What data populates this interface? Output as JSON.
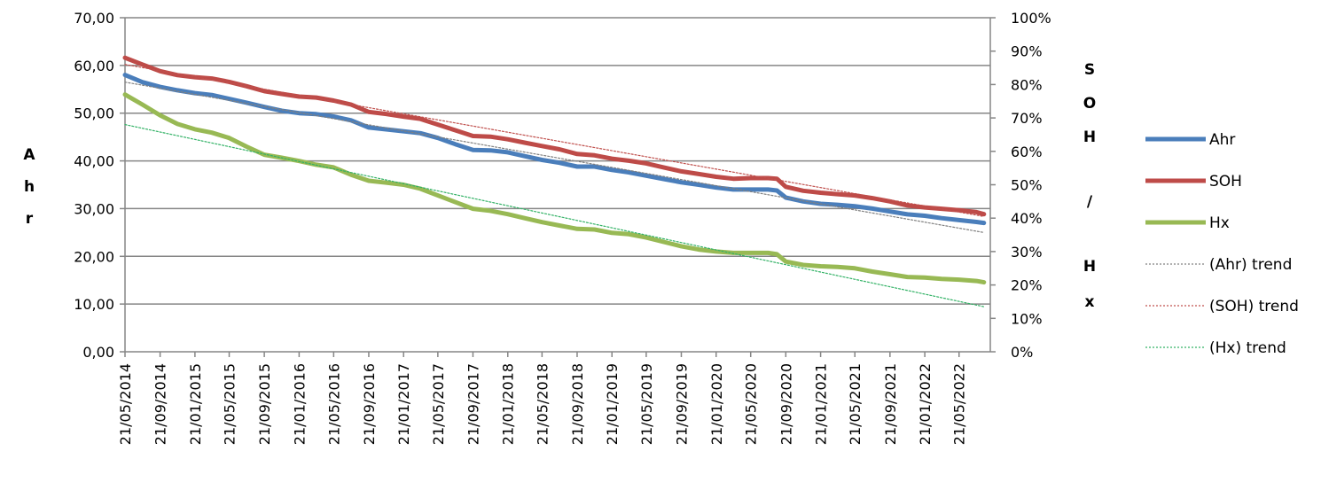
{
  "chart_data": {
    "type": "line",
    "title": "",
    "xlabel": "",
    "ylabel_left_letters": [
      "A",
      "h",
      "r"
    ],
    "ylabel_right_letters": [
      "S",
      "O",
      "H",
      "/",
      "H",
      "x"
    ],
    "x_ticks": [
      "21/05/2014",
      "21/09/2014",
      "21/01/2015",
      "21/05/2015",
      "21/09/2015",
      "21/01/2016",
      "21/05/2016",
      "21/09/2016",
      "21/01/2017",
      "21/05/2017",
      "21/09/2017",
      "21/01/2018",
      "21/05/2018",
      "21/09/2018",
      "21/01/2019",
      "21/05/2019",
      "21/09/2019",
      "21/01/2020",
      "21/05/2020",
      "21/09/2020",
      "21/01/2021",
      "21/05/2021",
      "21/09/2021",
      "21/01/2022",
      "21/05/2022"
    ],
    "y_left": {
      "range": [
        0,
        70
      ],
      "ticks": [
        "0,00",
        "10,00",
        "20,00",
        "30,00",
        "40,00",
        "50,00",
        "60,00",
        "70,00"
      ]
    },
    "y_right": {
      "range": [
        0,
        100
      ],
      "ticks": [
        "0%",
        "10%",
        "20%",
        "30%",
        "40%",
        "50%",
        "60%",
        "70%",
        "80%",
        "90%",
        "100%"
      ]
    },
    "grid": "horizontal",
    "legend_position": "right",
    "series": [
      {
        "name": "Ahr",
        "axis": "left",
        "color": "#4a7ebb",
        "style": "solid",
        "points": [
          [
            "21/05/2014",
            58.0
          ],
          [
            "21/07/2014",
            56.5
          ],
          [
            "21/09/2014",
            55.5
          ],
          [
            "21/11/2014",
            54.8
          ],
          [
            "21/01/2015",
            54.2
          ],
          [
            "21/03/2015",
            53.8
          ],
          [
            "21/05/2015",
            53.0
          ],
          [
            "21/07/2015",
            52.2
          ],
          [
            "21/09/2015",
            51.3
          ],
          [
            "21/11/2015",
            50.5
          ],
          [
            "21/01/2016",
            50.0
          ],
          [
            "21/03/2016",
            49.8
          ],
          [
            "21/05/2016",
            49.3
          ],
          [
            "21/07/2016",
            48.5
          ],
          [
            "21/09/2016",
            47.0
          ],
          [
            "21/11/2016",
            46.6
          ],
          [
            "21/01/2017",
            46.2
          ],
          [
            "21/03/2017",
            45.8
          ],
          [
            "21/05/2017",
            44.8
          ],
          [
            "21/07/2017",
            43.5
          ],
          [
            "21/09/2017",
            42.3
          ],
          [
            "21/11/2017",
            42.2
          ],
          [
            "21/01/2018",
            41.8
          ],
          [
            "21/03/2018",
            41.0
          ],
          [
            "21/05/2018",
            40.2
          ],
          [
            "21/07/2018",
            39.6
          ],
          [
            "21/09/2018",
            38.8
          ],
          [
            "21/11/2018",
            38.8
          ],
          [
            "21/01/2019",
            38.1
          ],
          [
            "21/03/2019",
            37.6
          ],
          [
            "21/05/2019",
            36.9
          ],
          [
            "21/07/2019",
            36.2
          ],
          [
            "21/09/2019",
            35.5
          ],
          [
            "21/11/2019",
            35.0
          ],
          [
            "21/01/2020",
            34.4
          ],
          [
            "21/03/2020",
            34.0
          ],
          [
            "21/05/2020",
            34.0
          ],
          [
            "21/07/2020",
            34.0
          ],
          [
            "21/08/2020",
            33.8
          ],
          [
            "21/09/2020",
            32.3
          ],
          [
            "21/11/2020",
            31.5
          ],
          [
            "21/01/2021",
            31.0
          ],
          [
            "21/03/2021",
            30.8
          ],
          [
            "21/05/2021",
            30.5
          ],
          [
            "21/07/2021",
            30.0
          ],
          [
            "21/09/2021",
            29.4
          ],
          [
            "21/11/2021",
            28.8
          ],
          [
            "21/01/2022",
            28.5
          ],
          [
            "21/03/2022",
            28.0
          ],
          [
            "21/05/2022",
            27.6
          ],
          [
            "21/07/2022",
            27.2
          ],
          [
            "16/08/2022",
            27.0
          ]
        ]
      },
      {
        "name": "SOH",
        "axis": "right",
        "color": "#be4b48",
        "style": "solid",
        "points": [
          [
            "21/05/2014",
            88.0
          ],
          [
            "21/07/2014",
            86.0
          ],
          [
            "21/09/2014",
            84.0
          ],
          [
            "21/11/2014",
            82.8
          ],
          [
            "21/01/2015",
            82.2
          ],
          [
            "21/03/2015",
            81.8
          ],
          [
            "21/05/2015",
            80.8
          ],
          [
            "21/07/2015",
            79.5
          ],
          [
            "21/09/2015",
            78.0
          ],
          [
            "21/11/2015",
            77.2
          ],
          [
            "21/01/2016",
            76.4
          ],
          [
            "21/03/2016",
            76.1
          ],
          [
            "21/05/2016",
            75.2
          ],
          [
            "21/07/2016",
            74.0
          ],
          [
            "21/09/2016",
            71.8
          ],
          [
            "21/11/2016",
            71.2
          ],
          [
            "21/01/2017",
            70.4
          ],
          [
            "21/03/2017",
            69.7
          ],
          [
            "21/05/2017",
            68.0
          ],
          [
            "21/07/2017",
            66.3
          ],
          [
            "21/09/2017",
            64.6
          ],
          [
            "21/11/2017",
            64.4
          ],
          [
            "21/01/2018",
            63.6
          ],
          [
            "21/03/2018",
            62.6
          ],
          [
            "21/05/2018",
            61.6
          ],
          [
            "21/07/2018",
            60.6
          ],
          [
            "21/09/2018",
            59.2
          ],
          [
            "21/11/2018",
            58.8
          ],
          [
            "21/01/2019",
            57.8
          ],
          [
            "21/03/2019",
            57.2
          ],
          [
            "21/05/2019",
            56.4
          ],
          [
            "21/07/2019",
            55.2
          ],
          [
            "21/09/2019",
            54.0
          ],
          [
            "21/11/2019",
            53.2
          ],
          [
            "21/01/2020",
            52.4
          ],
          [
            "21/03/2020",
            51.8
          ],
          [
            "21/05/2020",
            52.0
          ],
          [
            "21/07/2020",
            52.0
          ],
          [
            "21/08/2020",
            51.8
          ],
          [
            "21/09/2020",
            49.4
          ],
          [
            "21/11/2020",
            48.2
          ],
          [
            "21/01/2021",
            47.6
          ],
          [
            "21/03/2021",
            47.2
          ],
          [
            "21/05/2021",
            46.8
          ],
          [
            "21/07/2021",
            46.0
          ],
          [
            "21/09/2021",
            45.0
          ],
          [
            "21/11/2021",
            43.8
          ],
          [
            "21/01/2022",
            43.2
          ],
          [
            "21/03/2022",
            42.8
          ],
          [
            "21/05/2022",
            42.4
          ],
          [
            "21/07/2022",
            41.8
          ],
          [
            "16/08/2022",
            41.2
          ]
        ]
      },
      {
        "name": "Hx",
        "axis": "right",
        "color": "#98b954",
        "style": "solid",
        "points": [
          [
            "21/05/2014",
            77.0
          ],
          [
            "21/07/2014",
            74.0
          ],
          [
            "21/09/2014",
            70.8
          ],
          [
            "21/11/2014",
            68.2
          ],
          [
            "21/01/2015",
            66.6
          ],
          [
            "21/03/2015",
            65.6
          ],
          [
            "21/05/2015",
            64.0
          ],
          [
            "21/07/2015",
            61.4
          ],
          [
            "21/09/2015",
            59.0
          ],
          [
            "21/11/2015",
            58.1
          ],
          [
            "21/01/2016",
            57.1
          ],
          [
            "21/03/2016",
            56.0
          ],
          [
            "21/05/2016",
            55.2
          ],
          [
            "21/07/2016",
            53.0
          ],
          [
            "21/09/2016",
            51.2
          ],
          [
            "21/11/2016",
            50.6
          ],
          [
            "21/01/2017",
            50.0
          ],
          [
            "21/03/2017",
            48.8
          ],
          [
            "21/05/2017",
            46.8
          ],
          [
            "21/07/2017",
            44.8
          ],
          [
            "21/09/2017",
            42.8
          ],
          [
            "21/11/2017",
            42.2
          ],
          [
            "21/01/2018",
            41.2
          ],
          [
            "21/03/2018",
            40.0
          ],
          [
            "21/05/2018",
            38.8
          ],
          [
            "21/07/2018",
            37.8
          ],
          [
            "21/09/2018",
            36.8
          ],
          [
            "21/11/2018",
            36.6
          ],
          [
            "21/01/2019",
            35.6
          ],
          [
            "21/03/2019",
            35.2
          ],
          [
            "21/05/2019",
            34.2
          ],
          [
            "21/07/2019",
            32.9
          ],
          [
            "21/09/2019",
            31.6
          ],
          [
            "21/11/2019",
            30.6
          ],
          [
            "21/01/2020",
            30.0
          ],
          [
            "21/03/2020",
            29.6
          ],
          [
            "21/05/2020",
            29.6
          ],
          [
            "21/07/2020",
            29.6
          ],
          [
            "21/08/2020",
            29.2
          ],
          [
            "21/09/2020",
            27.0
          ],
          [
            "21/11/2020",
            26.0
          ],
          [
            "21/01/2021",
            25.6
          ],
          [
            "21/03/2021",
            25.4
          ],
          [
            "21/05/2021",
            25.0
          ],
          [
            "21/07/2021",
            24.0
          ],
          [
            "21/09/2021",
            23.2
          ],
          [
            "21/11/2021",
            22.4
          ],
          [
            "21/01/2022",
            22.2
          ],
          [
            "21/03/2022",
            21.8
          ],
          [
            "21/05/2022",
            21.6
          ],
          [
            "21/07/2022",
            21.2
          ],
          [
            "16/08/2022",
            20.8
          ]
        ]
      },
      {
        "name": "(Ahr) trend",
        "axis": "left",
        "color": "#808080",
        "style": "dotted",
        "points": [
          [
            "21/05/2014",
            56.5
          ],
          [
            "16/08/2022",
            25.0
          ]
        ]
      },
      {
        "name": "(SOH) trend",
        "axis": "right",
        "color": "#c0504d",
        "style": "dotted",
        "points": [
          [
            "21/05/2014",
            86.0
          ],
          [
            "16/08/2022",
            40.5
          ]
        ]
      },
      {
        "name": "(Hx) trend",
        "axis": "right",
        "color": "#33b266",
        "style": "dotted",
        "points": [
          [
            "21/05/2014",
            68.0
          ],
          [
            "16/08/2022",
            13.5
          ]
        ]
      }
    ]
  }
}
